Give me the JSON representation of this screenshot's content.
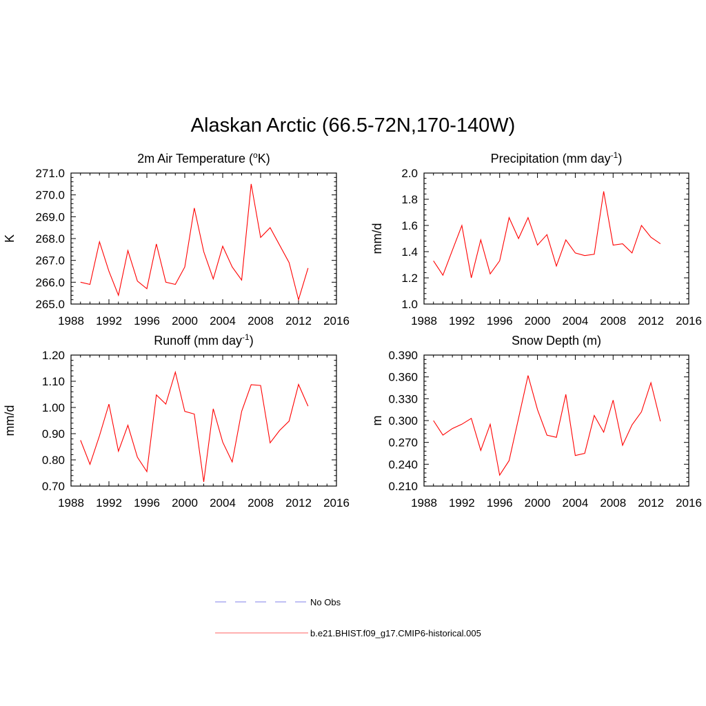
{
  "title": "Alaskan Arctic (66.5-72N,170-140W)",
  "x_ticks": [
    1988,
    1992,
    1996,
    2000,
    2004,
    2008,
    2012,
    2016
  ],
  "years": [
    1989,
    1990,
    1991,
    1992,
    1993,
    1994,
    1995,
    1996,
    1997,
    1998,
    1999,
    2000,
    2001,
    2002,
    2003,
    2004,
    2005,
    2006,
    2007,
    2008,
    2009,
    2010,
    2011,
    2012,
    2013
  ],
  "legend": [
    {
      "label": "No Obs",
      "color": "#9999ee",
      "dash": true
    },
    {
      "label": "b.e21.BHIST.f09_g17.CMIP6-historical.005",
      "color": "#ff8080",
      "dash": false
    }
  ],
  "chart_data": [
    {
      "type": "line",
      "title": "2m Air Temperature (",
      "title_sup": "o",
      "title_tail": "K)",
      "ylabel": "K",
      "xlim": [
        1988,
        2016
      ],
      "ylim": [
        265.0,
        271.0
      ],
      "yticks": [
        "265.0",
        "266.0",
        "267.0",
        "268.0",
        "269.0",
        "270.0",
        "271.0"
      ],
      "series": [
        {
          "color": "#ff0000",
          "values": [
            266.0,
            265.9,
            267.85,
            266.5,
            265.4,
            267.45,
            266.05,
            265.7,
            267.75,
            266.0,
            265.9,
            266.7,
            269.4,
            267.4,
            266.15,
            267.65,
            266.7,
            266.1,
            270.5,
            268.05,
            268.5,
            null,
            null,
            265.2,
            266.65
          ],
          "extra": {
            "2011": 266.9
          }
        }
      ]
    },
    {
      "type": "line",
      "title": "Precipitation (mm day",
      "title_sup": "-1",
      "title_tail": ")",
      "ylabel": "mm/d",
      "xlim": [
        1988,
        2016
      ],
      "ylim": [
        1.0,
        2.0
      ],
      "yticks": [
        "1.0",
        "1.2",
        "1.4",
        "1.6",
        "1.8",
        "2.0"
      ],
      "series": [
        {
          "color": "#ff0000",
          "values": [
            1.33,
            1.22,
            1.41,
            1.6,
            1.2,
            1.49,
            1.23,
            1.33,
            1.66,
            1.5,
            1.66,
            1.45,
            1.53,
            1.29,
            1.49,
            1.39,
            1.37,
            1.38,
            1.86,
            1.45,
            1.46,
            1.39,
            1.6,
            1.51,
            1.46
          ]
        }
      ]
    },
    {
      "type": "line",
      "title": "Runoff (mm day",
      "title_sup": "-1",
      "title_tail": ")",
      "ylabel": "mm/d",
      "xlim": [
        1988,
        2016
      ],
      "ylim": [
        0.7,
        1.2
      ],
      "yticks": [
        "0.70",
        "0.80",
        "0.90",
        "1.00",
        "1.10",
        "1.20"
      ],
      "series": [
        {
          "color": "#ff0000",
          "values": [
            0.875,
            0.783,
            0.892,
            1.013,
            0.833,
            0.932,
            0.81,
            0.755,
            1.048,
            1.013,
            1.135,
            0.985,
            0.975,
            0.716,
            0.995,
            0.868,
            0.792,
            0.985,
            1.087,
            1.084,
            0.865,
            0.912,
            0.948,
            1.088,
            1.005
          ]
        }
      ]
    },
    {
      "type": "line",
      "title": "Snow Depth (m)",
      "title_sup": "",
      "title_tail": "",
      "ylabel": "m",
      "xlim": [
        1988,
        2016
      ],
      "ylim": [
        0.21,
        0.39
      ],
      "yticks": [
        "0.210",
        "0.240",
        "0.270",
        "0.300",
        "0.330",
        "0.360",
        "0.390"
      ],
      "series": [
        {
          "color": "#ff0000",
          "values": [
            0.3,
            0.28,
            0.289,
            0.295,
            0.303,
            0.259,
            0.295,
            0.225,
            0.245,
            0.303,
            0.362,
            0.315,
            0.28,
            0.277,
            0.336,
            0.252,
            0.255,
            0.307,
            0.284,
            0.328,
            0.266,
            0.294,
            0.312,
            0.352,
            0.299
          ]
        }
      ]
    }
  ]
}
